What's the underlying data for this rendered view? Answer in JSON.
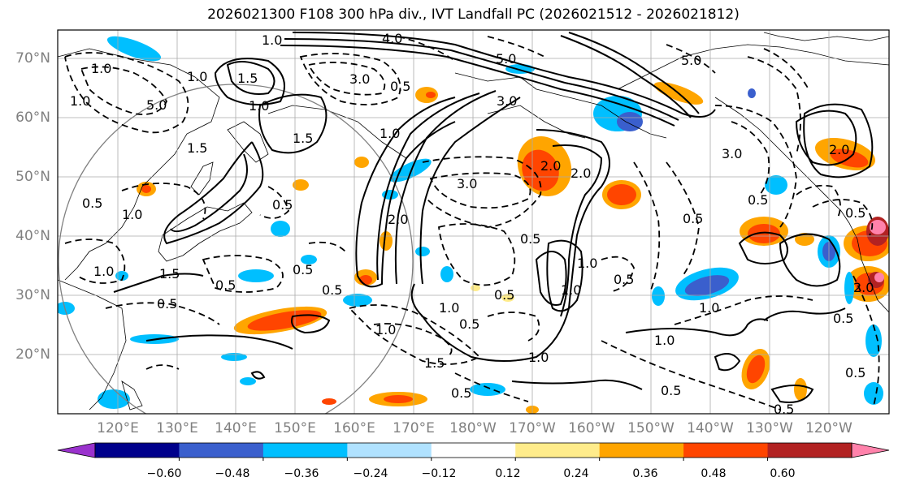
{
  "title": "2026021300 F108 300 hPa div., IVT Landfall PC (2026021512 - 2026021812)",
  "lat_labels": [
    "70°N",
    "60°N",
    "50°N",
    "40°N",
    "30°N",
    "20°N"
  ],
  "lon_labels": [
    "120°E",
    "130°E",
    "140°E",
    "150°E",
    "160°E",
    "170°E",
    "180°W",
    "170°W",
    "160°W",
    "150°W",
    "140°W",
    "130°W",
    "120°W"
  ],
  "colorbar": {
    "colors": [
      "#9a32cd",
      "#00008b",
      "#3a5fcd",
      "#00bfff",
      "#b0e2ff",
      "#ffffff",
      "#ffec8b",
      "#ffa500",
      "#ff4500",
      "#b22222",
      "#ff82ab"
    ],
    "tick_labels": [
      "−0.60",
      "−0.48",
      "−0.36",
      "−0.24",
      "−0.12",
      "0.12",
      "0.24",
      "0.36",
      "0.48",
      "0.60"
    ]
  },
  "contour_labels": [
    "1.0",
    "4.0",
    "5.0",
    "5.0",
    "1.0",
    "1.5",
    "3.0",
    "0.5",
    "1.0",
    "5.0",
    "3.0",
    "1.0",
    "1.0",
    "1.5",
    "1.5",
    "1.0",
    "3.0",
    "2.0",
    "2.0",
    "0.5",
    "0.5",
    "0.5",
    "0.5",
    "0.5",
    "1.0",
    "0.5",
    "1.0",
    "0.5",
    "1.0",
    "1.5",
    "0.5",
    "0.5",
    "0.5",
    "1.0",
    "0.5",
    "1.0",
    "0.5",
    "2.0",
    "0.5",
    "1.0",
    "0.5",
    "3.0",
    "2.0",
    "0.5",
    "0.5",
    "0.5",
    "0.5",
    "1.0",
    "1.0",
    "1.5",
    "2.0",
    "1.0"
  ]
}
